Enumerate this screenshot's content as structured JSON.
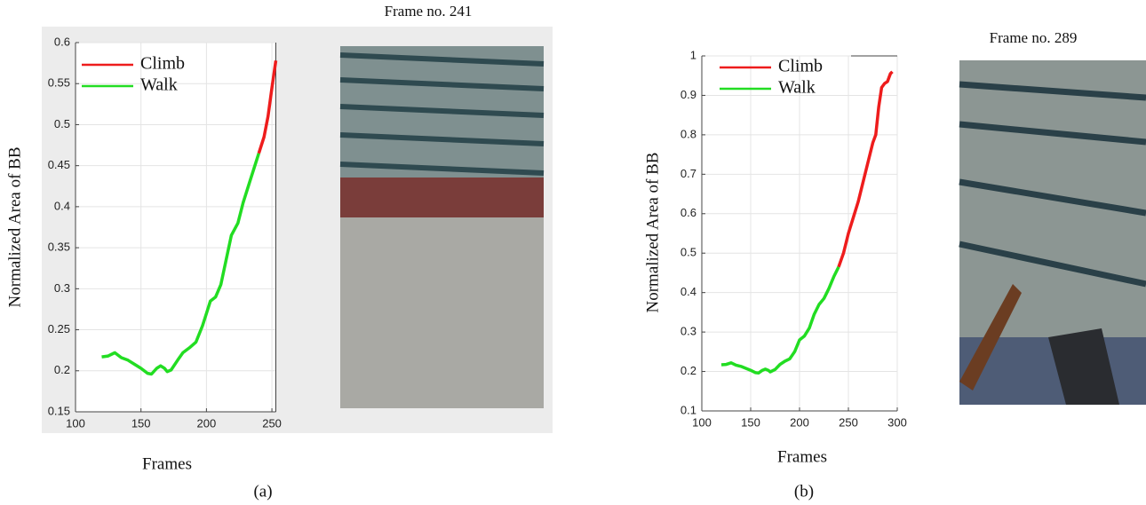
{
  "chart_data": [
    {
      "type": "line",
      "annotation": "Frame no. 241",
      "caption": "(a)",
      "xlabel": "Frames",
      "ylabel": "Normalized Area of BB",
      "x": [
        120,
        125,
        130,
        135,
        140,
        145,
        150,
        155,
        158,
        162,
        165,
        168,
        170,
        173,
        178,
        182,
        187,
        192,
        197,
        200,
        203,
        207,
        211,
        215,
        219,
        224,
        228,
        233,
        240,
        244,
        247,
        250,
        253
      ],
      "series": [
        {
          "name": "Climb",
          "color": "#ee1c1c",
          "values": [
            null,
            null,
            null,
            null,
            null,
            null,
            null,
            null,
            null,
            null,
            null,
            null,
            null,
            null,
            null,
            null,
            null,
            null,
            null,
            null,
            null,
            null,
            null,
            null,
            null,
            null,
            null,
            null,
            0.465,
            0.485,
            0.51,
            0.545,
            0.578
          ]
        },
        {
          "name": "Walk",
          "color": "#22dd22",
          "values": [
            0.217,
            0.218,
            0.222,
            0.216,
            0.213,
            0.208,
            0.203,
            0.197,
            0.196,
            0.203,
            0.206,
            0.203,
            0.199,
            0.201,
            0.213,
            0.222,
            0.228,
            0.235,
            0.255,
            0.27,
            0.285,
            0.29,
            0.305,
            0.335,
            0.365,
            0.38,
            0.405,
            0.43,
            0.465,
            null,
            null,
            null,
            null
          ]
        }
      ],
      "xlim": [
        100,
        253
      ],
      "xticks": [
        100,
        150,
        200,
        250
      ],
      "ylim": [
        0.15,
        0.6
      ],
      "yticks": [
        0.15,
        0.2,
        0.25,
        0.3,
        0.35,
        0.4,
        0.45,
        0.5,
        0.55,
        0.6
      ],
      "grid": true
    },
    {
      "type": "line",
      "annotation": "Frame no. 289",
      "caption": "(b)",
      "xlabel": "Frames",
      "ylabel": "Normalized Area of BB",
      "x": [
        120,
        125,
        130,
        135,
        140,
        145,
        150,
        155,
        158,
        162,
        165,
        168,
        170,
        175,
        180,
        185,
        190,
        195,
        200,
        205,
        210,
        215,
        220,
        225,
        230,
        235,
        240,
        245,
        250,
        255,
        260,
        265,
        270,
        275,
        278,
        281,
        284,
        287,
        290,
        293,
        295
      ],
      "series": [
        {
          "name": "Climb",
          "color": "#ee1c1c",
          "values": [
            null,
            null,
            null,
            null,
            null,
            null,
            null,
            null,
            null,
            null,
            null,
            null,
            null,
            null,
            null,
            null,
            null,
            null,
            null,
            null,
            null,
            null,
            null,
            null,
            null,
            null,
            0.465,
            0.5,
            0.55,
            0.59,
            0.63,
            0.68,
            0.73,
            0.78,
            0.8,
            0.87,
            0.92,
            0.93,
            0.935,
            0.955,
            0.96
          ]
        },
        {
          "name": "Walk",
          "color": "#22dd22",
          "values": [
            0.217,
            0.218,
            0.222,
            0.216,
            0.213,
            0.208,
            0.203,
            0.197,
            0.196,
            0.203,
            0.206,
            0.203,
            0.199,
            0.205,
            0.218,
            0.226,
            0.232,
            0.25,
            0.28,
            0.29,
            0.31,
            0.345,
            0.37,
            0.385,
            0.41,
            0.44,
            0.465,
            null,
            null,
            null,
            null,
            null,
            null,
            null,
            null,
            null,
            null,
            null,
            null,
            null,
            null
          ]
        }
      ],
      "xlim": [
        100,
        300
      ],
      "xticks": [
        100,
        150,
        200,
        250,
        300
      ],
      "ylim": [
        0.1,
        1
      ],
      "yticks": [
        0.1,
        0.2,
        0.3,
        0.4,
        0.5,
        0.6,
        0.7,
        0.8,
        0.9,
        1
      ],
      "grid": true
    }
  ]
}
